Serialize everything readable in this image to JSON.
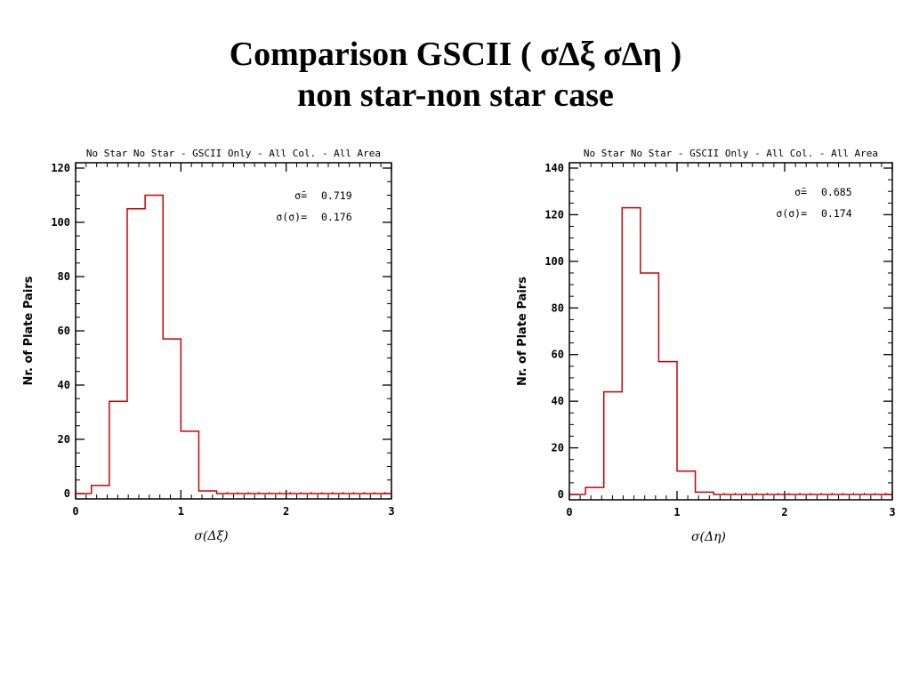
{
  "slide": {
    "title_line1": "Comparison GSCII ( σΔξ  σΔη )",
    "title_line2": "non star-non star case"
  },
  "chart_data": [
    {
      "type": "bar",
      "title": "No Star No Star - GSCII Only - All Col. - All Area",
      "xlabel": "σ(Δξ)",
      "ylabel": "Nr. of Plate Pairs",
      "xlim": [
        0,
        3
      ],
      "ylim": [
        0,
        120
      ],
      "xticks": [
        0,
        1,
        2,
        3
      ],
      "yticks": [
        0,
        20,
        40,
        60,
        80,
        100,
        120
      ],
      "bin_edges": [
        0.15,
        0.32,
        0.49,
        0.66,
        0.83,
        1.0,
        1.17,
        1.34
      ],
      "values": [
        3,
        34,
        105,
        110,
        57,
        23,
        1
      ],
      "color": "#cc0000",
      "annotations": [
        {
          "label": "σ̄=",
          "value": "0.719"
        },
        {
          "label": "σ(σ)=",
          "value": "0.176"
        }
      ]
    },
    {
      "type": "bar",
      "title": "No Star No Star - GSCII Only - All Col. - All Area",
      "xlabel": "σ(Δη)",
      "ylabel": "Nr. of Plate Pairs",
      "xlim": [
        0,
        3
      ],
      "ylim": [
        0,
        140
      ],
      "xticks": [
        0,
        1,
        2,
        3
      ],
      "yticks": [
        0,
        20,
        40,
        60,
        80,
        100,
        120,
        140
      ],
      "bin_edges": [
        0.15,
        0.32,
        0.49,
        0.66,
        0.83,
        1.0,
        1.17,
        1.34
      ],
      "values": [
        3,
        44,
        123,
        95,
        57,
        10,
        1
      ],
      "color": "#cc0000",
      "annotations": [
        {
          "label": "σ̄=",
          "value": "0.685"
        },
        {
          "label": "σ(σ)=",
          "value": "0.174"
        }
      ]
    }
  ]
}
